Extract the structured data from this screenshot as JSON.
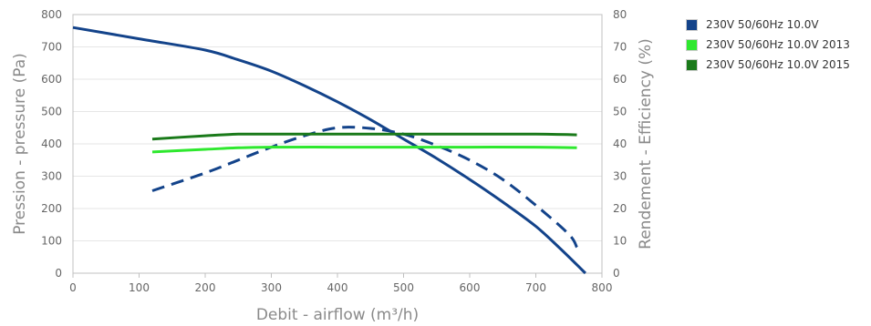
{
  "chart_data": {
    "type": "line",
    "xlabel": "Debit - airflow (m³/h)",
    "ylabel_left": "Pression - pressure (Pa)",
    "ylabel_right": "Rendement - Efficiency (%)",
    "xlim": [
      0,
      800
    ],
    "ylim_left": [
      0,
      800
    ],
    "ylim_right": [
      0,
      80
    ],
    "x_ticks": [
      "0",
      "100",
      "200",
      "300",
      "400",
      "500",
      "600",
      "700",
      "800"
    ],
    "y_left_ticks": [
      "0",
      "100",
      "200",
      "300",
      "400",
      "500",
      "600",
      "700",
      "800"
    ],
    "y_right_ticks": [
      "0",
      "10",
      "20",
      "30",
      "40",
      "50",
      "60",
      "70",
      "80"
    ],
    "grid": true,
    "legend_position": "top-right, outside",
    "series": [
      {
        "name": "230V 50/60Hz 10.0V",
        "axis": "left",
        "style": "solid",
        "color": "#13438a",
        "points": [
          [
            0,
            760
          ],
          [
            100,
            725
          ],
          [
            200,
            690
          ],
          [
            250,
            660
          ],
          [
            300,
            625
          ],
          [
            350,
            580
          ],
          [
            400,
            530
          ],
          [
            450,
            475
          ],
          [
            500,
            415
          ],
          [
            550,
            355
          ],
          [
            600,
            290
          ],
          [
            650,
            220
          ],
          [
            700,
            145
          ],
          [
            740,
            70
          ],
          [
            775,
            0
          ]
        ]
      },
      {
        "axis": "right",
        "style": "dashed",
        "color": "#13438a",
        "points": [
          [
            120,
            25.5
          ],
          [
            200,
            31
          ],
          [
            250,
            35
          ],
          [
            300,
            39
          ],
          [
            350,
            42.5
          ],
          [
            400,
            45
          ],
          [
            450,
            44.8
          ],
          [
            500,
            43
          ],
          [
            550,
            39.5
          ],
          [
            600,
            35
          ],
          [
            650,
            29
          ],
          [
            700,
            21
          ],
          [
            750,
            12
          ],
          [
            762,
            8
          ]
        ]
      },
      {
        "name": "230V 50/60Hz 10.0V 2013",
        "axis": "right",
        "style": "solid",
        "color": "#2ee82e",
        "points": [
          [
            120,
            37.5
          ],
          [
            200,
            38.3
          ],
          [
            250,
            38.8
          ],
          [
            300,
            39
          ],
          [
            400,
            39
          ],
          [
            500,
            39
          ],
          [
            600,
            39
          ],
          [
            700,
            39
          ],
          [
            762,
            38.8
          ]
        ]
      },
      {
        "name": "230V 50/60Hz 10.0V 2015",
        "axis": "right",
        "style": "solid",
        "color": "#1a7a1a",
        "points": [
          [
            120,
            41.5
          ],
          [
            200,
            42.5
          ],
          [
            250,
            43
          ],
          [
            300,
            43
          ],
          [
            400,
            43
          ],
          [
            500,
            43
          ],
          [
            600,
            43
          ],
          [
            700,
            43
          ],
          [
            762,
            42.8
          ]
        ]
      }
    ]
  }
}
